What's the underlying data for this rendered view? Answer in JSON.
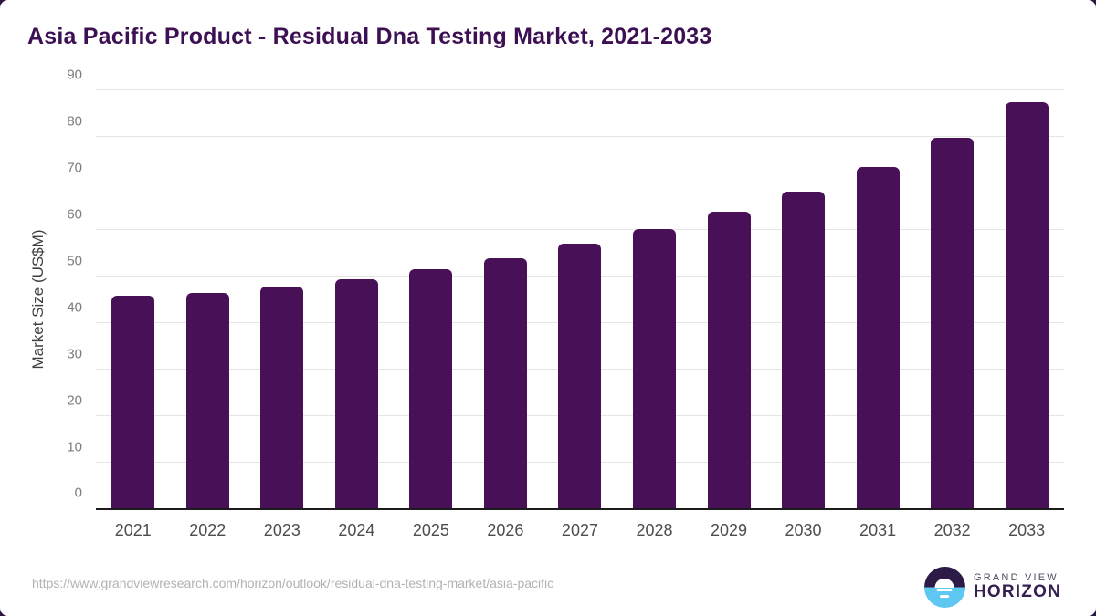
{
  "title": "Asia Pacific Product - Residual Dna Testing Market, 2021-2033",
  "footer": {
    "source_url": "https://www.grandviewresearch.com/horizon/outlook/residual-dna-testing-market/asia-pacific"
  },
  "logo": {
    "name": "Grand View Horizon",
    "line1": "GRAND VIEW",
    "line2": "HORIZON"
  },
  "colors": {
    "bar": "#471057",
    "title": "#3d1053",
    "gridline": "#e5e5e5",
    "axis_line": "#1c1c1c",
    "y_tick_text": "#7d7d7d",
    "x_tick_text": "#4d4d4d",
    "url_text": "#b2b2b2",
    "logo_dark": "#2d1b47",
    "logo_blue": "#5ec8f2"
  },
  "chart_data": {
    "type": "bar",
    "title": "Asia Pacific Product - Residual Dna Testing Market, 2021-2033",
    "categories": [
      "2021",
      "2022",
      "2023",
      "2024",
      "2025",
      "2026",
      "2027",
      "2028",
      "2029",
      "2030",
      "2031",
      "2032",
      "2033"
    ],
    "values": [
      45.9,
      46.5,
      47.8,
      49.5,
      51.6,
      54.0,
      57.0,
      60.2,
      64.0,
      68.3,
      73.6,
      79.8,
      87.5
    ],
    "xlabel": "",
    "ylabel": "Market Size (US$M)",
    "ylim": [
      0,
      90
    ],
    "ytick_step": 10,
    "yticks": [
      0,
      10,
      20,
      30,
      40,
      50,
      60,
      70,
      80,
      90
    ],
    "grid": true,
    "legend": false,
    "bar_color": "#471057"
  }
}
